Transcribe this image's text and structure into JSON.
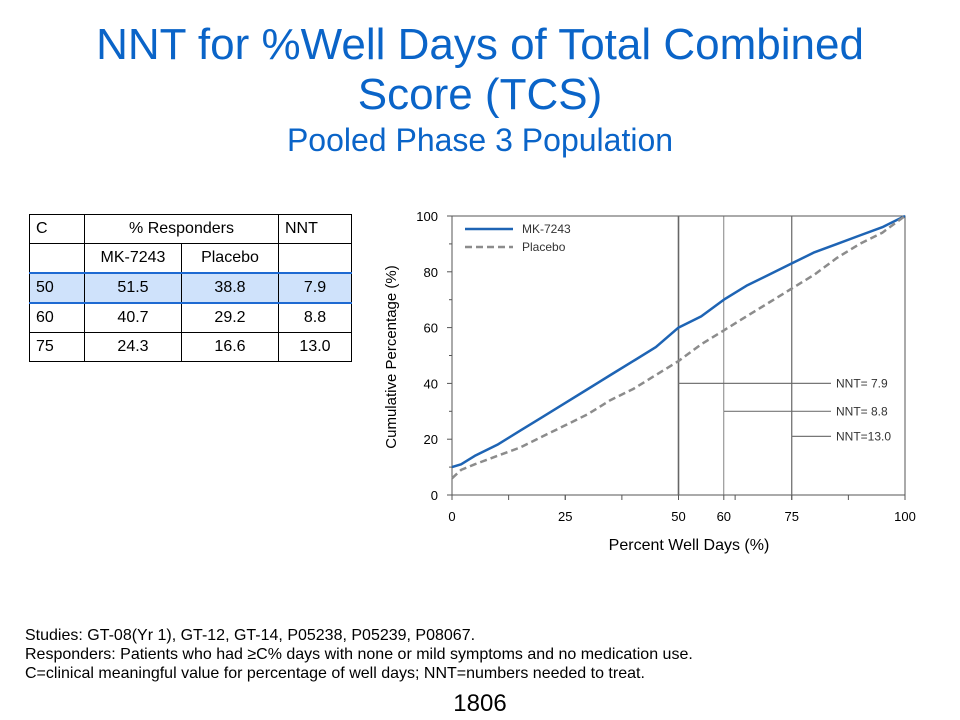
{
  "slide": {
    "title_line1": "NNT for %Well Days of Total Combined",
    "title_line2": "Score (TCS)",
    "subtitle": "Pooled Phase 3 Population",
    "page_number": "1806"
  },
  "table": {
    "header": [
      "C",
      "% Responders",
      "NNT"
    ],
    "subheader": [
      "",
      "MK-7243",
      "Placebo",
      ""
    ],
    "rows": [
      [
        "50",
        "51.5",
        "38.8",
        "7.9"
      ],
      [
        "60",
        "40.7",
        "29.2",
        "8.8"
      ],
      [
        "75",
        "24.3",
        "16.6",
        "13.0"
      ]
    ],
    "highlight_color": "#cfe2fb",
    "highlight_border": "#1e6ad2"
  },
  "footnotes": [
    "Studies: GT-08(Yr 1), GT-12, GT-14, P05238, P05239, P08067.",
    "Responders: Patients who had ≥C% days with none or mild symptoms and no medication use.",
    "C=clinical meaningful value for percentage of well days; NNT=numbers needed to treat."
  ],
  "chart_data": {
    "type": "line",
    "xlabel": "Percent Well Days (%)",
    "ylabel": "Cumulative Percentage (%)",
    "xlim": [
      0,
      100
    ],
    "ylim": [
      0,
      100
    ],
    "x_ticks": [
      0,
      25,
      50,
      60,
      75,
      100
    ],
    "y_ticks": [
      0,
      20,
      40,
      60,
      80,
      100
    ],
    "legend_position": "top-left",
    "series": [
      {
        "name": "MK-7243",
        "color": "#1e64b4",
        "style": "solid",
        "x": [
          0,
          2,
          5,
          10,
          15,
          20,
          25,
          30,
          35,
          40,
          45,
          50,
          55,
          60,
          65,
          70,
          75,
          80,
          85,
          90,
          95,
          100
        ],
        "y": [
          10,
          11,
          14,
          18,
          23,
          28,
          33,
          38,
          43,
          48,
          53,
          60,
          64,
          70,
          75,
          79,
          83,
          87,
          90,
          93,
          96,
          100
        ]
      },
      {
        "name": "Placebo",
        "color": "#8c8c8c",
        "style": "dashed",
        "x": [
          0,
          2,
          5,
          10,
          15,
          20,
          25,
          30,
          35,
          40,
          45,
          50,
          55,
          60,
          65,
          70,
          75,
          80,
          85,
          90,
          95,
          100
        ],
        "y": [
          6,
          9,
          11,
          14,
          17,
          21,
          25,
          29,
          34,
          38,
          43,
          48,
          54,
          59,
          64,
          69,
          74,
          79,
          85,
          90,
          94,
          100
        ]
      }
    ],
    "reference_lines": [
      {
        "x": 50,
        "y": 40,
        "label": "NNT=  7.9"
      },
      {
        "x": 60,
        "y": 30,
        "label": "NNT=  8.8"
      },
      {
        "x": 75,
        "y": 21,
        "label": "NNT=13.0"
      }
    ]
  }
}
